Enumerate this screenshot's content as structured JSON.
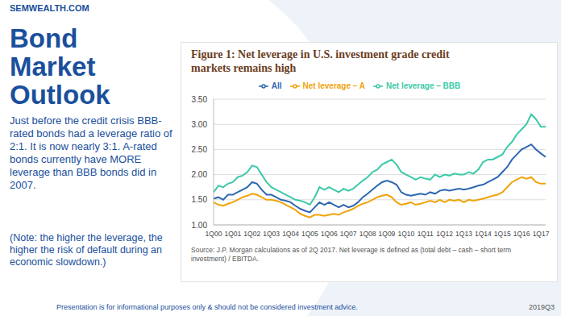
{
  "slide": {
    "site": "SEMWEALTH.COM",
    "heading": "Bond Market Outlook",
    "body": "Just before the credit crisis BBB-rated bonds had a leverage ratio of 2:1. It is now nearly 3:1. A-rated bonds currently have MORE leverage than BBB bonds did in 2007.",
    "note": "(Note: the higher the leverage, the higher the risk of default during an economic slowdown.)",
    "footer": "Presentation is for informational purposes only & should not be considered investment advice.",
    "period": "2019Q3"
  },
  "chart_data": {
    "type": "line",
    "title": "Figure 1: Net leverage in U.S. investment grade credit markets remains high",
    "source": "Source: J.P. Morgan calculations as of 2Q 2017. Net leverage is defined as (total debt – cash – short term investment) / EBITDA.",
    "categories": [
      "1Q00",
      null,
      null,
      null,
      "1Q01",
      null,
      null,
      null,
      "1Q02",
      null,
      null,
      null,
      "1Q03",
      null,
      null,
      null,
      "1Q04",
      null,
      null,
      null,
      "1Q05",
      null,
      null,
      null,
      "1Q06",
      null,
      null,
      null,
      "1Q07",
      null,
      null,
      null,
      "1Q08",
      null,
      null,
      null,
      "1Q09",
      null,
      null,
      null,
      "1Q10",
      null,
      null,
      null,
      "1Q11",
      null,
      null,
      null,
      "1Q12",
      null,
      null,
      null,
      "1Q13",
      null,
      null,
      null,
      "1Q14",
      null,
      null,
      null,
      "1Q15",
      null,
      null,
      null,
      "1Q16",
      null,
      null,
      null,
      "1Q17",
      null
    ],
    "series": [
      {
        "name": "All",
        "color": "#2e67b1",
        "values": [
          1.52,
          1.55,
          1.5,
          1.6,
          1.6,
          1.65,
          1.7,
          1.75,
          1.85,
          1.82,
          1.7,
          1.6,
          1.6,
          1.55,
          1.5,
          1.48,
          1.45,
          1.38,
          1.32,
          1.28,
          1.25,
          1.35,
          1.45,
          1.4,
          1.45,
          1.4,
          1.35,
          1.4,
          1.35,
          1.38,
          1.45,
          1.55,
          1.62,
          1.7,
          1.78,
          1.85,
          1.88,
          1.85,
          1.8,
          1.65,
          1.6,
          1.58,
          1.6,
          1.62,
          1.6,
          1.65,
          1.62,
          1.68,
          1.7,
          1.68,
          1.7,
          1.72,
          1.7,
          1.72,
          1.75,
          1.78,
          1.8,
          1.85,
          1.9,
          1.95,
          2.05,
          2.15,
          2.3,
          2.4,
          2.5,
          2.55,
          2.6,
          2.5,
          2.42,
          2.35
        ]
      },
      {
        "name": "Net leverage – BBB",
        "color": "#3cc9a8",
        "values": [
          1.65,
          1.78,
          1.75,
          1.82,
          1.85,
          1.95,
          1.98,
          2.05,
          2.18,
          2.15,
          2.0,
          1.85,
          1.75,
          1.7,
          1.65,
          1.6,
          1.55,
          1.5,
          1.48,
          1.45,
          1.4,
          1.55,
          1.75,
          1.7,
          1.75,
          1.7,
          1.65,
          1.72,
          1.68,
          1.72,
          1.8,
          1.88,
          1.95,
          2.05,
          2.1,
          2.2,
          2.25,
          2.3,
          2.2,
          2.05,
          2.0,
          1.95,
          1.9,
          1.95,
          1.92,
          1.9,
          2.0,
          1.95,
          2.0,
          1.98,
          2.02,
          2.0,
          2.0,
          2.05,
          2.02,
          2.1,
          2.25,
          2.3,
          2.3,
          2.35,
          2.4,
          2.55,
          2.65,
          2.8,
          2.9,
          3.0,
          3.2,
          3.1,
          2.95,
          2.95
        ]
      },
      {
        "name": "Net leverage – A",
        "color": "#f0a30a",
        "values": [
          1.45,
          1.4,
          1.38,
          1.42,
          1.45,
          1.5,
          1.55,
          1.58,
          1.62,
          1.6,
          1.55,
          1.5,
          1.5,
          1.48,
          1.45,
          1.4,
          1.35,
          1.3,
          1.22,
          1.18,
          1.15,
          1.2,
          1.2,
          1.18,
          1.2,
          1.22,
          1.2,
          1.25,
          1.28,
          1.32,
          1.38,
          1.42,
          1.45,
          1.5,
          1.55,
          1.58,
          1.6,
          1.55,
          1.45,
          1.4,
          1.42,
          1.45,
          1.4,
          1.42,
          1.45,
          1.48,
          1.45,
          1.5,
          1.45,
          1.5,
          1.48,
          1.5,
          1.45,
          1.5,
          1.48,
          1.5,
          1.52,
          1.55,
          1.58,
          1.6,
          1.65,
          1.75,
          1.85,
          1.9,
          1.95,
          1.92,
          1.95,
          1.85,
          1.82,
          1.82
        ]
      }
    ],
    "ylim": [
      1,
      3.5
    ],
    "yticks": [
      {
        "value": 1,
        "label": "1.00"
      },
      {
        "value": 1.5,
        "label": "1.50"
      },
      {
        "value": 2,
        "label": "2.00"
      },
      {
        "value": 2.5,
        "label": "2.50"
      },
      {
        "value": 3,
        "label": "3.00"
      },
      {
        "value": 3.5,
        "label": "3.50"
      }
    ],
    "grid": true,
    "legend": "top"
  }
}
